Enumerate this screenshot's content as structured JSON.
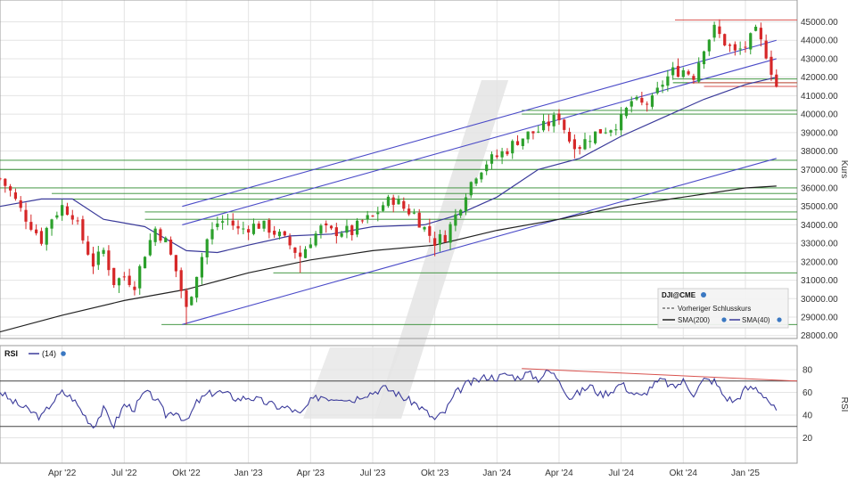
{
  "colors": {
    "up": "#2ca02c",
    "down": "#d62728",
    "sma200": "#222222",
    "sma40": "#3a3a9a",
    "channel": "#4b4bc8",
    "support": "#2e8b2e",
    "resistance": "#d9534f",
    "rsi": "#3b3b9b",
    "grid": "#e4e4e4",
    "watermark": "#e6e6e6"
  },
  "chart_data": [
    {
      "type": "candlestick",
      "title": "",
      "xlabel": "",
      "ylabel": "Kurs",
      "ylim": [
        27000,
        45800
      ],
      "x_ticks": [
        {
          "label": "Apr '22",
          "t": 3
        },
        {
          "label": "Jul '22",
          "t": 6
        },
        {
          "label": "Okt '22",
          "t": 9
        },
        {
          "label": "Jan '23",
          "t": 12
        },
        {
          "label": "Apr '23",
          "t": 15
        },
        {
          "label": "Jul '23",
          "t": 18
        },
        {
          "label": "Okt '23",
          "t": 21
        },
        {
          "label": "Jan '24",
          "t": 24
        },
        {
          "label": "Apr '24",
          "t": 27
        },
        {
          "label": "Jul '24",
          "t": 30
        },
        {
          "label": "Okt '24",
          "t": 33
        },
        {
          "label": "Jan '25",
          "t": 36
        }
      ],
      "t_range": [
        0,
        38.5
      ],
      "y_ticks": [
        "28000.00",
        "29000.00",
        "30000.00",
        "31000.00",
        "32000.00",
        "33000.00",
        "34000.00",
        "35000.00",
        "36000.00",
        "37000.00",
        "38000.00",
        "39000.00",
        "40000.00",
        "41000.00",
        "42000.00",
        "43000.00",
        "44000.00",
        "45000.00"
      ],
      "close_path": [
        [
          0,
          36500
        ],
        [
          0.5,
          35800
        ],
        [
          1,
          34800
        ],
        [
          1.5,
          34000
        ],
        [
          2,
          33200
        ],
        [
          2.5,
          34400
        ],
        [
          3,
          35000
        ],
        [
          3.5,
          34600
        ],
        [
          4,
          33200
        ],
        [
          4.5,
          31900
        ],
        [
          5,
          32600
        ],
        [
          5.5,
          30900
        ],
        [
          6,
          31200
        ],
        [
          6.5,
          30800
        ],
        [
          7,
          32500
        ],
        [
          7.5,
          33800
        ],
        [
          8,
          33100
        ],
        [
          8.5,
          31500
        ],
        [
          9,
          29400
        ],
        [
          9.5,
          31400
        ],
        [
          10,
          33200
        ],
        [
          10.5,
          34100
        ],
        [
          11,
          34300
        ],
        [
          11.5,
          33700
        ],
        [
          12,
          33900
        ],
        [
          12.5,
          34000
        ],
        [
          13,
          33800
        ],
        [
          13.5,
          33400
        ],
        [
          14,
          32900
        ],
        [
          14.5,
          32300
        ],
        [
          15,
          33200
        ],
        [
          15.5,
          33800
        ],
        [
          16,
          33600
        ],
        [
          16.5,
          33700
        ],
        [
          17,
          33600
        ],
        [
          17.5,
          34200
        ],
        [
          18,
          34400
        ],
        [
          18.5,
          35100
        ],
        [
          19,
          35400
        ],
        [
          19.5,
          34900
        ],
        [
          20,
          34600
        ],
        [
          20.5,
          33800
        ],
        [
          21,
          33100
        ],
        [
          21.5,
          33400
        ],
        [
          22,
          34500
        ],
        [
          22.5,
          35800
        ],
        [
          23,
          36800
        ],
        [
          23.5,
          37400
        ],
        [
          24,
          37700
        ],
        [
          24.5,
          38100
        ],
        [
          25,
          38600
        ],
        [
          25.5,
          38900
        ],
        [
          26,
          39100
        ],
        [
          26.5,
          39500
        ],
        [
          27,
          39900
        ],
        [
          27.5,
          38600
        ],
        [
          28,
          38300
        ],
        [
          28.5,
          38800
        ],
        [
          29,
          39100
        ],
        [
          29.5,
          39300
        ],
        [
          30,
          39700
        ],
        [
          30.5,
          40700
        ],
        [
          31,
          40500
        ],
        [
          31.5,
          40700
        ],
        [
          32,
          41700
        ],
        [
          32.5,
          42300
        ],
        [
          33,
          42400
        ],
        [
          33.5,
          42100
        ],
        [
          34,
          43700
        ],
        [
          34.5,
          44600
        ],
        [
          35,
          43900
        ],
        [
          35.5,
          43300
        ],
        [
          36,
          43700
        ],
        [
          36.5,
          44400
        ],
        [
          37,
          43300
        ],
        [
          37.5,
          41500
        ]
      ],
      "lows": [
        [
          8.9,
          28600
        ],
        [
          14.4,
          31400
        ],
        [
          21.1,
          32300
        ],
        [
          27.8,
          37600
        ]
      ],
      "sma200": [
        [
          0,
          28200
        ],
        [
          3,
          29100
        ],
        [
          6,
          29900
        ],
        [
          9,
          30500
        ],
        [
          12,
          31400
        ],
        [
          15,
          32100
        ],
        [
          18,
          32600
        ],
        [
          21,
          32900
        ],
        [
          24,
          33700
        ],
        [
          27,
          34300
        ],
        [
          30,
          35000
        ],
        [
          33,
          35500
        ],
        [
          36,
          36000
        ],
        [
          37.5,
          36100
        ]
      ],
      "sma40": [
        [
          0,
          35000
        ],
        [
          2,
          35400
        ],
        [
          3.5,
          35400
        ],
        [
          5,
          34300
        ],
        [
          7,
          33900
        ],
        [
          9,
          32600
        ],
        [
          10.5,
          32500
        ],
        [
          12,
          32900
        ],
        [
          14,
          33400
        ],
        [
          16,
          33500
        ],
        [
          18,
          33900
        ],
        [
          20.5,
          34000
        ],
        [
          22,
          34500
        ],
        [
          24,
          35500
        ],
        [
          26,
          37000
        ],
        [
          28,
          37600
        ],
        [
          30,
          38800
        ],
        [
          32,
          39800
        ],
        [
          34,
          40800
        ],
        [
          36,
          41600
        ],
        [
          37.5,
          42000
        ]
      ],
      "channel_lines": [
        {
          "from": [
            8.8,
            35000
          ],
          "to": [
            37.5,
            44000
          ]
        },
        {
          "from": [
            8.8,
            34000
          ],
          "to": [
            37.5,
            43000
          ]
        },
        {
          "from": [
            8.8,
            28600
          ],
          "to": [
            37.5,
            37600
          ]
        }
      ],
      "horizontal_support": [
        28600,
        31400,
        34300,
        34700,
        35400,
        35700,
        36000,
        37000,
        37500,
        40000,
        40200,
        41700,
        41900
      ],
      "support_start_t": [
        7.8,
        13.2,
        7.0,
        7.0,
        2.5,
        2.5,
        0,
        0,
        0,
        25.2,
        25.2,
        32.5,
        32.5
      ],
      "horizontal_resistance": [
        {
          "value": 45100,
          "from": 32.6
        },
        {
          "value": 41700,
          "from": 33.2
        },
        {
          "value": 41500,
          "from": 34.0
        }
      ],
      "legend": {
        "symbol": "DJI@CME",
        "items": [
          "Vorheriger Schlusskurs",
          "SMA(200)",
          "SMA(40)"
        ]
      }
    },
    {
      "type": "line",
      "title": "",
      "xlabel": "",
      "ylabel": "RSI",
      "ylim": [
        10,
        90
      ],
      "y_ticks": [
        "20",
        "40",
        "60",
        "80"
      ],
      "legend": {
        "name": "RSI",
        "period": "(14)"
      },
      "levels": [
        70,
        30
      ],
      "trend": {
        "from": [
          25.2,
          81
        ],
        "to": [
          38.5,
          70
        ]
      },
      "values": [
        [
          0,
          61
        ],
        [
          0.5,
          53
        ],
        [
          1,
          48
        ],
        [
          1.5,
          43
        ],
        [
          2,
          38
        ],
        [
          2.5,
          51
        ],
        [
          3,
          60
        ],
        [
          3.5,
          55
        ],
        [
          4,
          42
        ],
        [
          4.5,
          30
        ],
        [
          5,
          45
        ],
        [
          5.5,
          31
        ],
        [
          6,
          49
        ],
        [
          6.5,
          46
        ],
        [
          7,
          60
        ],
        [
          7.5,
          55
        ],
        [
          8,
          40
        ],
        [
          8.5,
          44
        ],
        [
          9,
          33
        ],
        [
          9.5,
          51
        ],
        [
          10,
          58
        ],
        [
          10.5,
          61
        ],
        [
          11,
          58
        ],
        [
          11.5,
          54
        ],
        [
          12,
          56
        ],
        [
          12.5,
          53
        ],
        [
          13,
          50
        ],
        [
          13.5,
          47
        ],
        [
          14,
          46
        ],
        [
          14.5,
          40
        ],
        [
          15,
          52
        ],
        [
          15.5,
          57
        ],
        [
          16,
          55
        ],
        [
          16.5,
          56
        ],
        [
          17,
          53
        ],
        [
          17.5,
          58
        ],
        [
          18,
          60
        ],
        [
          18.5,
          64
        ],
        [
          19,
          61
        ],
        [
          19.5,
          55
        ],
        [
          20,
          51
        ],
        [
          20.5,
          44
        ],
        [
          21,
          36
        ],
        [
          21.5,
          43
        ],
        [
          22,
          59
        ],
        [
          22.5,
          67
        ],
        [
          23,
          70
        ],
        [
          23.5,
          74
        ],
        [
          24,
          73
        ],
        [
          24.5,
          76
        ],
        [
          25,
          73
        ],
        [
          25.5,
          77
        ],
        [
          26,
          72
        ],
        [
          26.5,
          79
        ],
        [
          27,
          72
        ],
        [
          27.5,
          55
        ],
        [
          28,
          60
        ],
        [
          28.5,
          66
        ],
        [
          29,
          58
        ],
        [
          29.5,
          61
        ],
        [
          30,
          68
        ],
        [
          30.5,
          60
        ],
        [
          31,
          56
        ],
        [
          31.5,
          66
        ],
        [
          32,
          71
        ],
        [
          32.5,
          64
        ],
        [
          33,
          70
        ],
        [
          33.5,
          59
        ],
        [
          34,
          71
        ],
        [
          34.5,
          70
        ],
        [
          35,
          56
        ],
        [
          35.5,
          52
        ],
        [
          36,
          63
        ],
        [
          36.5,
          64
        ],
        [
          37,
          56
        ],
        [
          37.5,
          43
        ]
      ]
    }
  ]
}
